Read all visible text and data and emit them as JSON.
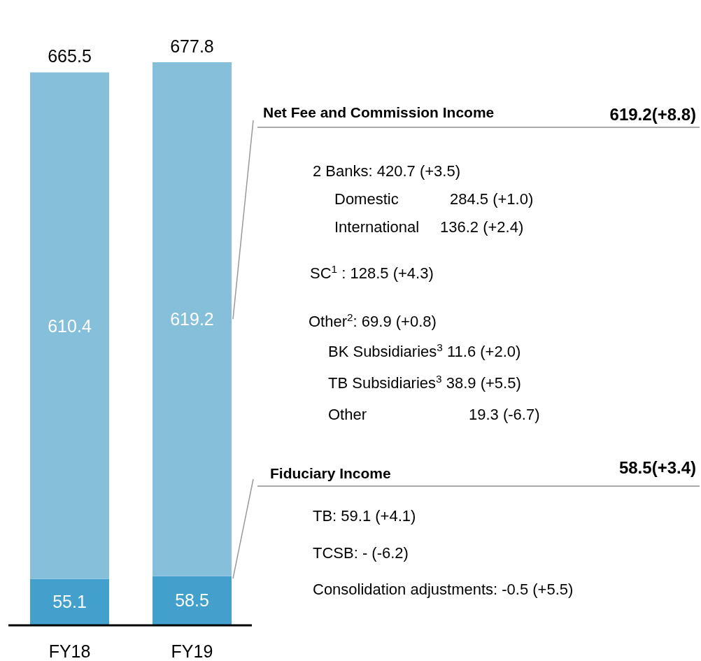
{
  "chart_data": {
    "type": "bar",
    "stacked": true,
    "categories": [
      "FY18",
      "FY19"
    ],
    "series": [
      {
        "name": "Fiduciary Income",
        "color": "#439fcb",
        "values": [
          55.1,
          58.5
        ]
      },
      {
        "name": "Net Fee and Commission Income",
        "color": "#86bfda",
        "values": [
          610.4,
          619.2
        ]
      }
    ],
    "totals": [
      "665.5",
      "677.8"
    ],
    "data_labels": true,
    "tick_labels": "x",
    "annotations": [
      "619.2(+8.8)",
      "2 Banks: 420.7 (+3.5)",
      "Domestic",
      "284.5 (+1.0)",
      "International",
      "136.2 (+2.4)",
      "SC$^{1}$ : 128.5 (+4.3)",
      "Other$^{2}$: 69.9 (+0.8)",
      "BK Subsidiaries$^{3}$ 11.6 (+2.0)",
      "TB Subsidiaries$^{3}$ 38.9 (+5.5)",
      "Other",
      "19.3 (-6.7)",
      "58.5(+3.4)",
      "TB: 59.1 (+4.1)",
      "TCSB: - (-6.2)",
      "Consolidation adjustments: -0.5 (+5.5)"
    ]
  }
}
